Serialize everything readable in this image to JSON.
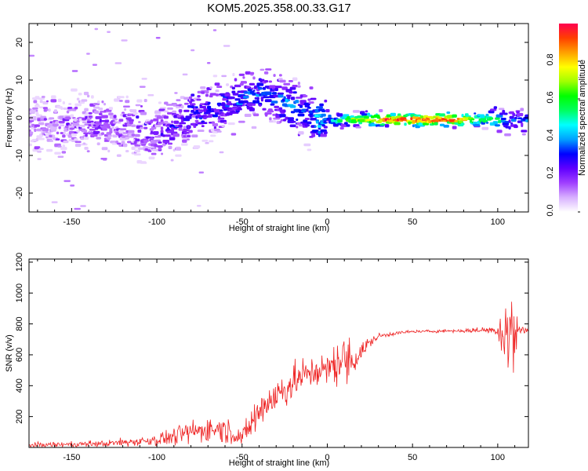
{
  "title": "KOM5.2025.358.00.33.G17",
  "colors": {
    "snr_line": "#ee2222",
    "axes": "#000000"
  },
  "chart_data": [
    {
      "type": "heatmap",
      "name": "spectrogram",
      "xlabel": "Height of straight line (km)",
      "ylabel": "Frequency (Hz)",
      "xlim": [
        -175,
        118
      ],
      "ylim": [
        -25,
        25
      ],
      "xticks": [
        -150,
        -100,
        -50,
        0,
        50,
        100
      ],
      "yticks": [
        -20,
        -10,
        0,
        10,
        20
      ],
      "colorbar": {
        "label": "Normalized spectral amplitude",
        "range": [
          0,
          1
        ],
        "ticks": [
          "0.0",
          "0.2",
          "0.4",
          "0.6",
          "0.8"
        ],
        "tick_values": [
          0,
          0.2,
          0.4,
          0.6,
          0.8
        ],
        "colormap": [
          "#ffffff",
          "#d8b0ff",
          "#a040ff",
          "#6000ff",
          "#0000ff",
          "#00a0ff",
          "#00ffff",
          "#00ff60",
          "#00ff00",
          "#a0ff00",
          "#ffff00",
          "#ffa000",
          "#ff4000",
          "#ff0050"
        ]
      },
      "ridge": {
        "x": [
          -170,
          -155,
          -140,
          -125,
          -110,
          -100,
          -90,
          -80,
          -70,
          -60,
          -50,
          -45,
          -40,
          -35,
          -30,
          -25,
          -20,
          -15,
          -10,
          -5,
          0,
          5,
          10,
          20,
          30,
          40,
          50,
          60,
          70,
          80,
          90,
          100,
          105,
          110,
          118
        ],
        "freq": [
          -1.5,
          -1.5,
          -1.8,
          -2,
          -3,
          -4,
          -2,
          1,
          2,
          3.5,
          5,
          6,
          6.5,
          6.5,
          5,
          4,
          3,
          2,
          0,
          -1,
          0.5,
          -1,
          -0.5,
          -0.5,
          -0.5,
          -0.5,
          -0.5,
          -0.5,
          -0.5,
          -0.5,
          -0.5,
          -0.5,
          -1,
          -1,
          -0.8
        ],
        "amp": [
          0.1,
          0.12,
          0.15,
          0.15,
          0.15,
          0.2,
          0.22,
          0.25,
          0.25,
          0.28,
          0.28,
          0.3,
          0.32,
          0.3,
          0.3,
          0.35,
          0.4,
          0.3,
          0.3,
          0.45,
          0.35,
          0.5,
          0.6,
          0.75,
          0.85,
          0.95,
          0.98,
          0.98,
          0.95,
          0.85,
          0.6,
          0.55,
          0.3,
          0.3,
          0.35
        ]
      }
    },
    {
      "type": "line",
      "name": "snr",
      "xlabel": "Height of straight line (km)",
      "ylabel": "SNR (v/v)",
      "xlim": [
        -175,
        118
      ],
      "ylim": [
        0,
        1220
      ],
      "xticks": [
        -150,
        -100,
        -50,
        0,
        50,
        100
      ],
      "yticks": [
        200,
        400,
        600,
        800,
        1000,
        1200
      ],
      "envelope": {
        "x": [
          -175,
          -150,
          -130,
          -110,
          -100,
          -90,
          -80,
          -70,
          -60,
          -50,
          -45,
          -40,
          -35,
          -30,
          -25,
          -20,
          -15,
          -10,
          -5,
          0,
          5,
          10,
          15,
          20,
          25,
          30,
          40,
          50,
          60,
          70,
          80,
          90,
          95,
          100,
          103,
          106,
          109,
          112,
          118
        ],
        "mean": [
          15,
          20,
          25,
          40,
          50,
          70,
          100,
          120,
          120,
          60,
          150,
          230,
          300,
          330,
          380,
          420,
          460,
          480,
          500,
          500,
          550,
          560,
          570,
          620,
          680,
          720,
          740,
          750,
          752,
          755,
          755,
          760,
          760,
          760,
          760,
          740,
          720,
          760,
          760
        ],
        "noise": [
          12,
          15,
          18,
          25,
          35,
          45,
          60,
          70,
          70,
          40,
          90,
          110,
          110,
          110,
          100,
          90,
          90,
          90,
          80,
          80,
          120,
          140,
          100,
          60,
          30,
          15,
          10,
          8,
          8,
          8,
          10,
          15,
          20,
          30,
          180,
          300,
          280,
          40,
          10
        ]
      }
    }
  ]
}
